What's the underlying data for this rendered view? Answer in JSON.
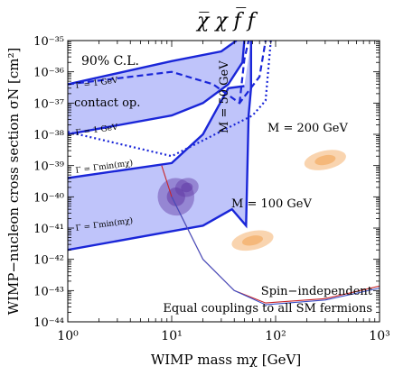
{
  "chart_data": {
    "type": "line",
    "title": "χ̅ χ f̅ f",
    "xlabel": "WIMP mass mχ [GeV]",
    "ylabel": "WIMP−nucleon cross section σN [cm²]",
    "xscale": "log",
    "yscale": "log",
    "xlim": [
      1,
      1000
    ],
    "ylim": [
      1e-44,
      1e-35
    ],
    "grid": false,
    "x_ticks": [
      {
        "value": 1,
        "label": "10⁰"
      },
      {
        "value": 10,
        "label": "10¹"
      },
      {
        "value": 100,
        "label": "10²"
      },
      {
        "value": 1000,
        "label": "10³"
      }
    ],
    "y_ticks": [
      {
        "value": 1e-44,
        "label": "10⁻⁴⁴"
      },
      {
        "value": 1e-43,
        "label": "10⁻⁴³"
      },
      {
        "value": 1e-42,
        "label": "10⁻⁴²"
      },
      {
        "value": 1e-41,
        "label": "10⁻⁴¹"
      },
      {
        "value": 1e-40,
        "label": "10⁻⁴⁰"
      },
      {
        "value": 1e-39,
        "label": "10⁻³⁹"
      },
      {
        "value": 1e-38,
        "label": "10⁻³⁸"
      },
      {
        "value": 1e-37,
        "label": "10⁻³⁷"
      },
      {
        "value": 1e-36,
        "label": "10⁻³⁶"
      },
      {
        "value": 1e-35,
        "label": "10⁻³⁵"
      }
    ],
    "colors": {
      "band_fill": "#2b3cf0",
      "band_line": "#1a26d8",
      "dashed": "#1a26d8",
      "blob_purple": "#7a3a86",
      "blob_orange": "#f2a04e",
      "curve_red": "#c8262a",
      "curve_blue": "#3a4fc8"
    },
    "series": [
      {
        "name": "Γ = 1 GeV",
        "style": "band",
        "lower": [
          [
            1,
            4e-37
          ],
          [
            10,
            2.2e-36
          ],
          [
            30,
            4.5e-36
          ],
          [
            42,
            1e-35
          ]
        ],
        "upper": [
          [
            1,
            1e-38
          ],
          [
            10,
            4e-38
          ],
          [
            20,
            1e-37
          ],
          [
            35,
            4e-37
          ],
          [
            48,
            2e-36
          ],
          [
            50,
            1e-35
          ]
        ]
      },
      {
        "name": "Γ = Γmin(mχ)",
        "style": "band",
        "lower": [
          [
            1,
            4e-40
          ],
          [
            10,
            1.2e-39
          ],
          [
            20,
            1e-38
          ],
          [
            35,
            3e-37
          ],
          [
            50,
            3.5e-37
          ]
        ],
        "upper": [
          [
            1,
            2e-42
          ],
          [
            20,
            1.2e-41
          ],
          [
            38,
            4e-41
          ],
          [
            52,
            1.2e-41
          ],
          [
            55,
            4e-38
          ],
          [
            58,
            3e-37
          ],
          [
            58,
            1e-35
          ]
        ]
      },
      {
        "name": "contact op.",
        "style": "dashed",
        "points": [
          [
            1,
            4e-37
          ],
          [
            10,
            1e-36
          ],
          [
            25,
            4e-37
          ],
          [
            45,
            1e-37
          ],
          [
            70,
            7e-37
          ],
          [
            80,
            1e-35
          ]
        ]
      },
      {
        "name": "",
        "style": "dashed",
        "points": [
          [
            45,
            1e-37
          ],
          [
            50,
            2.5e-36
          ],
          [
            55,
            1e-35
          ]
        ]
      },
      {
        "name": "",
        "style": "dotted",
        "points": [
          [
            1,
            1.2e-38
          ],
          [
            10,
            2e-39
          ],
          [
            60,
            4e-38
          ],
          [
            80,
            1.2e-37
          ],
          [
            90,
            1e-35
          ]
        ]
      },
      {
        "name": "",
        "style": "curve",
        "color": "red",
        "points": [
          [
            8,
            1e-39
          ],
          [
            10,
            1e-40
          ],
          [
            20,
            1e-42
          ],
          [
            40,
            1e-43
          ],
          [
            80,
            4e-44
          ],
          [
            300,
            5.5e-44
          ],
          [
            1000,
            1.4e-43
          ]
        ]
      },
      {
        "name": "",
        "style": "curve",
        "color": "blue",
        "points": [
          [
            10,
            1e-40
          ],
          [
            20,
            1e-42
          ],
          [
            40,
            1e-43
          ],
          [
            80,
            3.5e-44
          ],
          [
            300,
            5e-44
          ],
          [
            1000,
            1.2e-43
          ]
        ]
      }
    ],
    "blobs": [
      {
        "color": "purple",
        "center": [
          11,
          1e-40
        ],
        "spread_x": 1.5,
        "spread_y": 4
      },
      {
        "color": "purple",
        "center": [
          14,
          2e-40
        ],
        "spread_x": 1.3,
        "spread_y": 2
      },
      {
        "color": "orange",
        "center": [
          300,
          1.5e-39
        ],
        "spread_x": 1.6,
        "spread_y": 2
      },
      {
        "color": "orange",
        "center": [
          60,
          4e-42
        ],
        "spread_x": 1.6,
        "spread_y": 2
      }
    ],
    "annotations": {
      "cl": "90% C.L.",
      "gamma_top": "Γ = 1 GeV",
      "contact": "contact op.",
      "gamma_mid": "Γ = 1 GeV",
      "gamma_min_upper": "Γ = Γmin(mχ)",
      "gamma_min_lower": "Γ = Γmin(mχ)",
      "m50": "M = 50 GeV",
      "m200": "M = 200 GeV",
      "m100": "M = 100 GeV",
      "spin": "Spin−independent",
      "equal": "Equal couplings to all SM fermions"
    }
  }
}
